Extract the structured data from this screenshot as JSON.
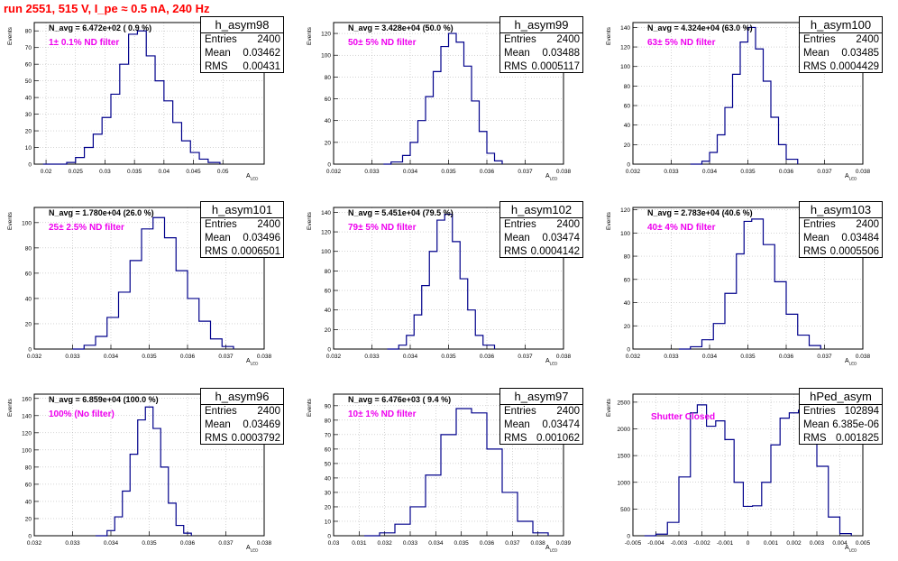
{
  "header": {
    "title": "run 2551,   515 V, I_pe ≈ 0.5 nA, 240 Hz"
  },
  "labels": {
    "entries": "Entries",
    "mean": "Mean",
    "rms": "RMS",
    "ytitle": "Events",
    "xtitle": "A",
    "xtitle_sub": "LED"
  },
  "colors": {
    "line": "#00008b",
    "note": "#ee00ee",
    "title": "#ff0000",
    "grid": "#aaaaaa"
  },
  "chart_data": [
    {
      "type": "histogram",
      "name": "h_asym98",
      "n_avg": "N_avg = 6.472e+02 ( 0.9 %)",
      "note": "1± 0.1% ND filter",
      "stats": {
        "entries": "2400",
        "mean": "0.03462",
        "rms": "0.00431"
      },
      "xlim": [
        0.018,
        0.057
      ],
      "ylim": [
        0,
        85
      ],
      "xticks": [
        0.02,
        0.025,
        0.03,
        0.035,
        0.04,
        0.045,
        0.05
      ],
      "xticklabels": [
        "0.02",
        "0.025",
        "0.03",
        "0.035",
        "0.04",
        "0.045",
        "0.05"
      ],
      "yticks": [
        0,
        10,
        20,
        30,
        40,
        50,
        60,
        70,
        80
      ],
      "x": [
        0.0195,
        0.0235,
        0.025,
        0.0265,
        0.028,
        0.0295,
        0.031,
        0.0325,
        0.034,
        0.0355,
        0.037,
        0.0385,
        0.04,
        0.0415,
        0.043,
        0.0445,
        0.046,
        0.0475,
        0.0495
      ],
      "y": [
        0,
        1,
        4,
        10,
        18,
        28,
        42,
        60,
        78,
        80,
        65,
        50,
        38,
        25,
        14,
        7,
        3,
        1,
        0
      ]
    },
    {
      "type": "histogram",
      "name": "h_asym99",
      "n_avg": "N_avg = 3.428e+04 (50.0 %)",
      "note": "50± 5% ND filter",
      "stats": {
        "entries": "2400",
        "mean": "0.03488",
        "rms": "0.0005117"
      },
      "xlim": [
        0.032,
        0.038
      ],
      "ylim": [
        0,
        130
      ],
      "xticks": [
        0.032,
        0.033,
        0.034,
        0.035,
        0.036,
        0.037,
        0.038
      ],
      "xticklabels": [
        "0.032",
        "0.033",
        "0.034",
        "0.035",
        "0.036",
        "0.037",
        "0.038"
      ],
      "yticks": [
        0,
        20,
        40,
        60,
        80,
        100,
        120
      ],
      "x": [
        0.0333,
        0.0335,
        0.0338,
        0.034,
        0.0342,
        0.0344,
        0.0346,
        0.0348,
        0.035,
        0.0352,
        0.0354,
        0.0356,
        0.0358,
        0.036,
        0.0362,
        0.0364
      ],
      "y": [
        0,
        2,
        8,
        20,
        40,
        62,
        85,
        108,
        120,
        112,
        90,
        58,
        30,
        10,
        3,
        0
      ]
    },
    {
      "type": "histogram",
      "name": "h_asym100",
      "n_avg": "N_avg = 4.324e+04 (63.0 %)",
      "note": "63± 5% ND filter",
      "stats": {
        "entries": "2400",
        "mean": "0.03485",
        "rms": "0.0004429"
      },
      "xlim": [
        0.032,
        0.038
      ],
      "ylim": [
        0,
        145
      ],
      "xticks": [
        0.032,
        0.033,
        0.034,
        0.035,
        0.036,
        0.037,
        0.038
      ],
      "xticklabels": [
        "0.032",
        "0.033",
        "0.034",
        "0.035",
        "0.036",
        "0.037",
        "0.038"
      ],
      "yticks": [
        0,
        20,
        40,
        60,
        80,
        100,
        120,
        140
      ],
      "x": [
        0.0335,
        0.0338,
        0.034,
        0.0342,
        0.0344,
        0.0346,
        0.0348,
        0.035,
        0.0352,
        0.0354,
        0.0356,
        0.0358,
        0.036,
        0.0363
      ],
      "y": [
        0,
        3,
        12,
        30,
        58,
        92,
        125,
        140,
        118,
        85,
        48,
        20,
        5,
        0
      ]
    },
    {
      "type": "histogram",
      "name": "h_asym101",
      "n_avg": "N_avg = 1.780e+04 (26.0 %)",
      "note": "25± 2.5% ND filter",
      "stats": {
        "entries": "2400",
        "mean": "0.03496",
        "rms": "0.0006501"
      },
      "xlim": [
        0.032,
        0.038
      ],
      "ylim": [
        0,
        112
      ],
      "xticks": [
        0.032,
        0.033,
        0.034,
        0.035,
        0.036,
        0.037,
        0.038
      ],
      "xticklabels": [
        "0.032",
        "0.033",
        "0.034",
        "0.035",
        "0.036",
        "0.037",
        "0.038"
      ],
      "yticks": [
        0,
        20,
        40,
        60,
        80,
        100
      ],
      "x": [
        0.033,
        0.0333,
        0.0336,
        0.0339,
        0.0342,
        0.0345,
        0.0348,
        0.0351,
        0.0354,
        0.0357,
        0.036,
        0.0363,
        0.0366,
        0.0369,
        0.0372
      ],
      "y": [
        0,
        3,
        10,
        25,
        45,
        70,
        95,
        104,
        88,
        62,
        40,
        22,
        8,
        2,
        0
      ]
    },
    {
      "type": "histogram",
      "name": "h_asym102",
      "n_avg": "N_avg = 5.451e+04 (79.5 %)",
      "note": "79± 5% ND filter",
      "stats": {
        "entries": "2400",
        "mean": "0.03474",
        "rms": "0.0004142"
      },
      "xlim": [
        0.032,
        0.038
      ],
      "ylim": [
        0,
        145
      ],
      "xticks": [
        0.032,
        0.033,
        0.034,
        0.035,
        0.036,
        0.037,
        0.038
      ],
      "xticklabels": [
        "0.032",
        "0.033",
        "0.034",
        "0.035",
        "0.036",
        "0.037",
        "0.038"
      ],
      "yticks": [
        0,
        20,
        40,
        60,
        80,
        100,
        120,
        140
      ],
      "x": [
        0.0334,
        0.0337,
        0.0339,
        0.0341,
        0.0343,
        0.0345,
        0.0347,
        0.0349,
        0.0351,
        0.0353,
        0.0355,
        0.0357,
        0.0359,
        0.0362
      ],
      "y": [
        0,
        4,
        14,
        35,
        65,
        100,
        132,
        138,
        110,
        72,
        40,
        14,
        4,
        0
      ]
    },
    {
      "type": "histogram",
      "name": "h_asym103",
      "n_avg": "N_avg = 2.783e+04 (40.6 %)",
      "note": "40± 4% ND filter",
      "stats": {
        "entries": "2400",
        "mean": "0.03484",
        "rms": "0.0005506"
      },
      "xlim": [
        0.032,
        0.038
      ],
      "ylim": [
        0,
        122
      ],
      "xticks": [
        0.032,
        0.033,
        0.034,
        0.035,
        0.036,
        0.037,
        0.038
      ],
      "xticklabels": [
        "0.032",
        "0.033",
        "0.034",
        "0.035",
        "0.036",
        "0.037",
        "0.038"
      ],
      "yticks": [
        0,
        20,
        40,
        60,
        80,
        100,
        120
      ],
      "x": [
        0.0332,
        0.0335,
        0.0338,
        0.0341,
        0.0344,
        0.0347,
        0.0349,
        0.0351,
        0.0354,
        0.0357,
        0.036,
        0.0363,
        0.0366,
        0.0369
      ],
      "y": [
        0,
        2,
        8,
        22,
        48,
        82,
        110,
        112,
        90,
        58,
        30,
        12,
        3,
        0
      ]
    },
    {
      "type": "histogram",
      "name": "h_asym96",
      "n_avg": "N_avg = 6.859e+04 (100.0 %)",
      "note": "100% (No filter)",
      "stats": {
        "entries": "2400",
        "mean": "0.03469",
        "rms": "0.0003792"
      },
      "xlim": [
        0.032,
        0.038
      ],
      "ylim": [
        0,
        165
      ],
      "xticks": [
        0.032,
        0.033,
        0.034,
        0.035,
        0.036,
        0.037,
        0.038
      ],
      "xticklabels": [
        "0.032",
        "0.033",
        "0.034",
        "0.035",
        "0.036",
        "0.037",
        "0.038"
      ],
      "yticks": [
        0,
        20,
        40,
        60,
        80,
        100,
        120,
        140,
        160
      ],
      "x": [
        0.0336,
        0.0339,
        0.0341,
        0.0343,
        0.0345,
        0.0347,
        0.0349,
        0.0351,
        0.0353,
        0.0355,
        0.0357,
        0.0359,
        0.0361
      ],
      "y": [
        0,
        6,
        22,
        52,
        95,
        135,
        150,
        125,
        80,
        38,
        12,
        3,
        0
      ]
    },
    {
      "type": "histogram",
      "name": "h_asym97",
      "n_avg": "N_avg = 6.476e+03 ( 9.4 %)",
      "note": "10± 1% ND filter",
      "stats": {
        "entries": "2400",
        "mean": "0.03474",
        "rms": "0.001062"
      },
      "xlim": [
        0.03,
        0.039
      ],
      "ylim": [
        0,
        98
      ],
      "xticks": [
        0.03,
        0.031,
        0.032,
        0.033,
        0.034,
        0.035,
        0.036,
        0.037,
        0.038,
        0.039
      ],
      "xticklabels": [
        "0.03",
        "0.031",
        "0.032",
        "0.033",
        "0.034",
        "0.035",
        "0.036",
        "0.037",
        "0.038",
        "0.039"
      ],
      "yticks": [
        0,
        10,
        20,
        30,
        40,
        50,
        60,
        70,
        80,
        90
      ],
      "x": [
        0.0312,
        0.0318,
        0.0324,
        0.033,
        0.0336,
        0.0342,
        0.0348,
        0.0354,
        0.036,
        0.0366,
        0.0372,
        0.0378,
        0.0384
      ],
      "y": [
        0,
        2,
        8,
        20,
        42,
        70,
        88,
        85,
        60,
        30,
        10,
        2,
        0
      ]
    },
    {
      "type": "histogram",
      "name": "hPed_asym",
      "n_avg": "",
      "note": "Shutter Closed",
      "stats": {
        "entries": "102894",
        "mean": "6.385e-06",
        "rms": "0.001825"
      },
      "xlim": [
        -0.005,
        0.005
      ],
      "ylim": [
        0,
        2650
      ],
      "xticks": [
        -0.005,
        -0.004,
        -0.003,
        -0.002,
        -0.001,
        0,
        0.001,
        0.002,
        0.003,
        0.004,
        0.005
      ],
      "xticklabels": [
        "-0.005",
        "-0.004",
        "-0.003",
        "-0.002",
        "-0.001",
        "0",
        "0.001",
        "0.002",
        "0.003",
        "0.004",
        "0.005"
      ],
      "yticks": [
        0,
        500,
        1000,
        1500,
        2000,
        2500
      ],
      "x": [
        -0.0045,
        -0.004,
        -0.0035,
        -0.003,
        -0.0025,
        -0.0022,
        -0.0018,
        -0.0014,
        -0.001,
        -0.0006,
        -0.0002,
        0.0002,
        0.0006,
        0.001,
        0.0014,
        0.0018,
        0.0022,
        0.0026,
        0.003,
        0.0035,
        0.004,
        0.0045
      ],
      "y": [
        0,
        30,
        250,
        1100,
        2300,
        2450,
        2050,
        2150,
        1800,
        1000,
        550,
        560,
        1000,
        1700,
        2200,
        2300,
        2350,
        2100,
        1300,
        350,
        40,
        0
      ]
    }
  ]
}
